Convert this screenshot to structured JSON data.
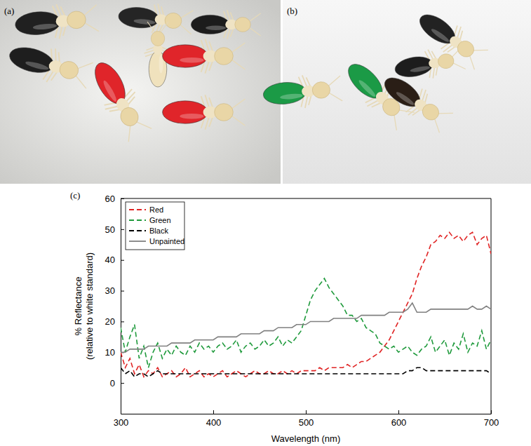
{
  "panel_labels": [
    "(a)",
    "(b)",
    "(c)"
  ],
  "chart_data": {
    "type": "line",
    "x_label": "Wavelength (nm)",
    "y_label": [
      "% Reflectance",
      "(relative to white standard)"
    ],
    "xlim": [
      300,
      700
    ],
    "xticks": [
      300,
      400,
      500,
      600,
      700
    ],
    "ylim": [
      -10,
      60
    ],
    "yticks": [
      0,
      10,
      20,
      30,
      40,
      50,
      60
    ],
    "legend": "upper left",
    "x": [
      300,
      305,
      310,
      315,
      320,
      325,
      330,
      335,
      340,
      345,
      350,
      355,
      360,
      365,
      370,
      375,
      380,
      385,
      390,
      395,
      400,
      405,
      410,
      415,
      420,
      425,
      430,
      435,
      440,
      445,
      450,
      455,
      460,
      465,
      470,
      475,
      480,
      485,
      490,
      495,
      500,
      505,
      510,
      515,
      520,
      525,
      530,
      535,
      540,
      545,
      550,
      555,
      560,
      565,
      570,
      575,
      580,
      585,
      590,
      595,
      600,
      605,
      610,
      615,
      620,
      625,
      630,
      635,
      640,
      645,
      650,
      655,
      660,
      665,
      670,
      675,
      680,
      685,
      690,
      695,
      700
    ],
    "series": [
      {
        "name": "Red",
        "color": "#e02424",
        "line_style": "dashed",
        "values": [
          10,
          5,
          8,
          3,
          6,
          2,
          4,
          3,
          5,
          2,
          3,
          4,
          2,
          3,
          5,
          2,
          3,
          4,
          2,
          3,
          2,
          3,
          4,
          2,
          3,
          4,
          3,
          2,
          3,
          4,
          3,
          3,
          4,
          3,
          3,
          4,
          3,
          4,
          3,
          4,
          4,
          4,
          4,
          5,
          4,
          5,
          5,
          5,
          5,
          6,
          5,
          6,
          7,
          7,
          8,
          9,
          10,
          12,
          14,
          17,
          20,
          23,
          26,
          29,
          34,
          38,
          41,
          45,
          46,
          48,
          47,
          49,
          47,
          48,
          46,
          48,
          49,
          45,
          47,
          48,
          42
        ]
      },
      {
        "name": "Green",
        "color": "#1f9a3c",
        "line_style": "dashed",
        "values": [
          18,
          10,
          15,
          19,
          8,
          12,
          5,
          10,
          13,
          8,
          11,
          9,
          12,
          10,
          9,
          12,
          10,
          13,
          11,
          12,
          10,
          12,
          13,
          11,
          12,
          14,
          10,
          12,
          13,
          11,
          12,
          14,
          12,
          13,
          15,
          12,
          14,
          13,
          15,
          17,
          22,
          27,
          30,
          32,
          34,
          31,
          29,
          27,
          25,
          22,
          22,
          20,
          21,
          18,
          17,
          16,
          13,
          12,
          11,
          12,
          10,
          11,
          12,
          10,
          9,
          11,
          12,
          15,
          10,
          12,
          14,
          9,
          13,
          11,
          16,
          10,
          13,
          12,
          17,
          11,
          14
        ]
      },
      {
        "name": "Black",
        "color": "#000000",
        "line_style": "dashed",
        "values": [
          5,
          3,
          4,
          2,
          3,
          3,
          2,
          3,
          4,
          3,
          3,
          3,
          3,
          3,
          3,
          3,
          3,
          3,
          3,
          3,
          3,
          3,
          3,
          3,
          3,
          3,
          3,
          3,
          3,
          3,
          3,
          3,
          3,
          3,
          3,
          3,
          3,
          3,
          3,
          3,
          3,
          3,
          3,
          3,
          3,
          3,
          3,
          3,
          3,
          3,
          3,
          3,
          3,
          3,
          3,
          3,
          3,
          3,
          3,
          3,
          3,
          3,
          4,
          4,
          5,
          5,
          4,
          4,
          4,
          4,
          4,
          4,
          4,
          4,
          4,
          4,
          4,
          4,
          4,
          4,
          3
        ]
      },
      {
        "name": "Unpainted",
        "color": "#808080",
        "line_style": "solid",
        "values": [
          10,
          10,
          11,
          11,
          11,
          11,
          12,
          12,
          12,
          12,
          12,
          13,
          13,
          13,
          13,
          13,
          14,
          14,
          14,
          14,
          14,
          15,
          15,
          15,
          15,
          15,
          16,
          16,
          16,
          16,
          16,
          17,
          17,
          17,
          18,
          18,
          18,
          18,
          19,
          19,
          19,
          20,
          20,
          20,
          20,
          20,
          21,
          21,
          21,
          21,
          21,
          21,
          22,
          22,
          22,
          22,
          22,
          22,
          23,
          23,
          23,
          23,
          24,
          26,
          23,
          23,
          23,
          24,
          24,
          24,
          24,
          24,
          24,
          24,
          24,
          24,
          25,
          24,
          24,
          25,
          24
        ]
      }
    ]
  }
}
